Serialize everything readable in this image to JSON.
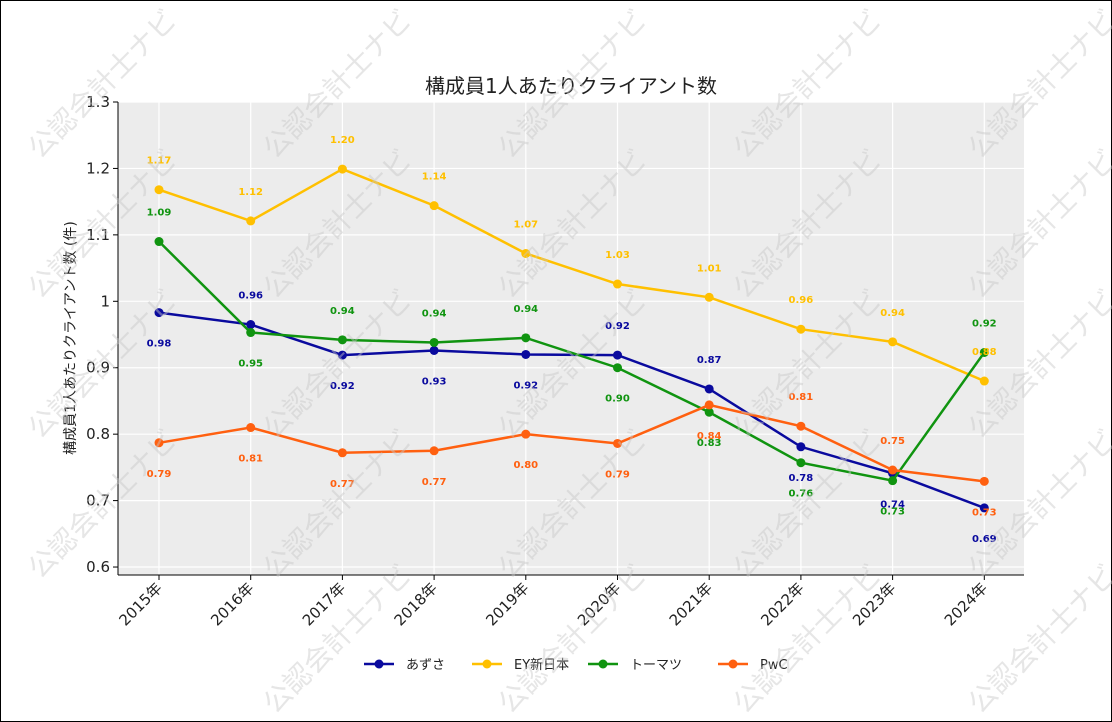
{
  "chart_data": {
    "type": "line",
    "title": "構成員1人あたりクライアント数",
    "xlabel": "",
    "ylabel": "構成員1人あたりクライアント数 (件)",
    "categories": [
      "2015年",
      "2016年",
      "2017年",
      "2018年",
      "2019年",
      "2020年",
      "2021年",
      "2022年",
      "2023年",
      "2024年"
    ],
    "ylim": [
      0.588,
      1.3
    ],
    "yticks": [
      0.6,
      0.7,
      0.8,
      0.9,
      1,
      1.1,
      1.2,
      1.3
    ],
    "ytick_labels": [
      "0.6",
      "0.7",
      "0.8",
      "0.9",
      "1",
      "1.1",
      "1.2",
      "1.3"
    ],
    "grid": true,
    "legend_position": "bottom-center",
    "series": [
      {
        "name": "あずさ",
        "color": "#0a0a9e",
        "values": [
          0.983,
          0.965,
          0.919,
          0.926,
          0.92,
          0.919,
          0.868,
          0.781,
          0.741,
          0.689
        ],
        "labels": [
          "0.98",
          "0.96",
          "0.92",
          "0.93",
          "0.92",
          "0.92",
          "0.87",
          "0.78",
          "0.74",
          "0.69"
        ],
        "label_pos": [
          "below",
          "above",
          "below",
          "below",
          "below",
          "above",
          "above",
          "below",
          "below",
          "below"
        ]
      },
      {
        "name": "EY新日本",
        "color": "#ffc000",
        "values": [
          1.168,
          1.121,
          1.199,
          1.144,
          1.072,
          1.026,
          1.006,
          0.958,
          0.939,
          0.88
        ],
        "labels": [
          "1.17",
          "1.12",
          "1.20",
          "1.14",
          "1.07",
          "1.03",
          "1.01",
          "0.96",
          "0.94",
          "0.88"
        ],
        "label_pos": [
          "above",
          "above",
          "above",
          "above",
          "above",
          "above",
          "above",
          "above",
          "above",
          "above"
        ]
      },
      {
        "name": "トーマツ",
        "color": "#109410",
        "values": [
          1.09,
          0.953,
          0.942,
          0.938,
          0.945,
          0.9,
          0.833,
          0.757,
          0.73,
          0.923
        ],
        "labels": [
          "1.09",
          "0.95",
          "0.94",
          "0.94",
          "0.94",
          "0.90",
          "0.83",
          "0.76",
          "0.73",
          "0.92"
        ],
        "label_pos": [
          "above",
          "below",
          "above",
          "above",
          "above",
          "below",
          "below",
          "below",
          "below",
          "above"
        ]
      },
      {
        "name": "PwC",
        "color": "#ff6010",
        "values": [
          0.787,
          0.81,
          0.772,
          0.775,
          0.8,
          0.786,
          0.844,
          0.812,
          0.746,
          0.729
        ],
        "labels": [
          "0.79",
          "0.81",
          "0.77",
          "0.77",
          "0.80",
          "0.79",
          "0.84",
          "0.81",
          "0.75",
          "0.73"
        ],
        "label_pos": [
          "below",
          "below",
          "below",
          "below",
          "below",
          "below",
          "below",
          "above",
          "above",
          "below"
        ]
      }
    ]
  },
  "watermark": "公認会計士ナビ"
}
